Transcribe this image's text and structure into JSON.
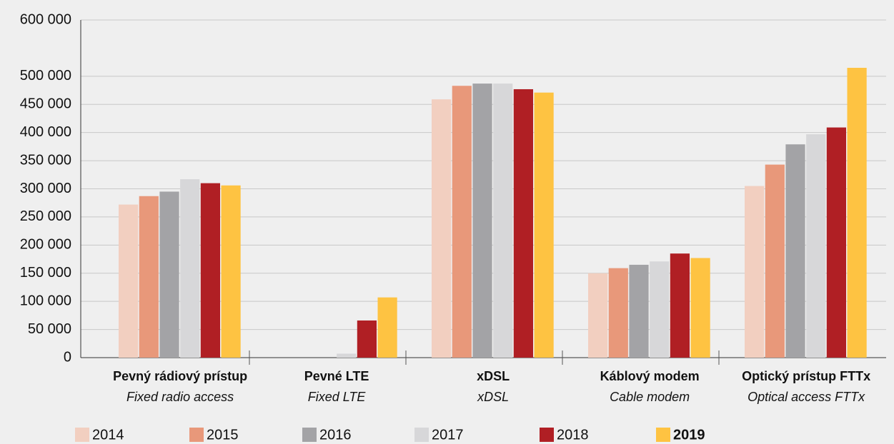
{
  "chart_data": {
    "type": "bar",
    "categories": [
      "Pevný rádiový prístup",
      "Pevné LTE",
      "xDSL",
      "Káblový modem",
      "Optický prístup FTTx"
    ],
    "categories_en": [
      "Fixed radio access",
      "Fixed LTE",
      "xDSL",
      "Cable modem",
      "Optical access FTTx"
    ],
    "series": [
      {
        "name": "2014",
        "color": "#f2cfc0",
        "values": [
          272000,
          null,
          459000,
          150000,
          305000
        ]
      },
      {
        "name": "2015",
        "color": "#e8987a",
        "values": [
          287000,
          null,
          483000,
          159000,
          343000
        ]
      },
      {
        "name": "2016",
        "color": "#a3a3a6",
        "values": [
          295000,
          null,
          487000,
          165000,
          379000
        ]
      },
      {
        "name": "2017",
        "color": "#d7d7d9",
        "values": [
          317000,
          7000,
          487000,
          171000,
          397000
        ]
      },
      {
        "name": "2018",
        "color": "#b01f24",
        "values": [
          310000,
          66000,
          477000,
          185000,
          409000
        ]
      },
      {
        "name": "2019",
        "color": "#fec342",
        "values": [
          306000,
          107000,
          471000,
          177000,
          515000
        ],
        "bold": true
      }
    ],
    "ylim": [
      0,
      600000
    ],
    "yticks": [
      0,
      {
        "value": 50000,
        "label": "50 000"
      },
      {
        "value": 100000,
        "label": "100 000"
      },
      {
        "value": 150000,
        "label": "150 000"
      },
      {
        "value": 200000,
        "label": "200 000"
      },
      {
        "value": 250000,
        "label": "250 000"
      },
      {
        "value": 300000,
        "label": "300 000"
      },
      {
        "value": 350000,
        "label": "350 000"
      },
      {
        "value": 400000,
        "label": "400 000"
      },
      {
        "value": 450000,
        "label": "450 000"
      },
      {
        "value": 500000,
        "label": "500 000"
      },
      {
        "value": 600000,
        "label": "600 000"
      }
    ],
    "grid": true
  }
}
